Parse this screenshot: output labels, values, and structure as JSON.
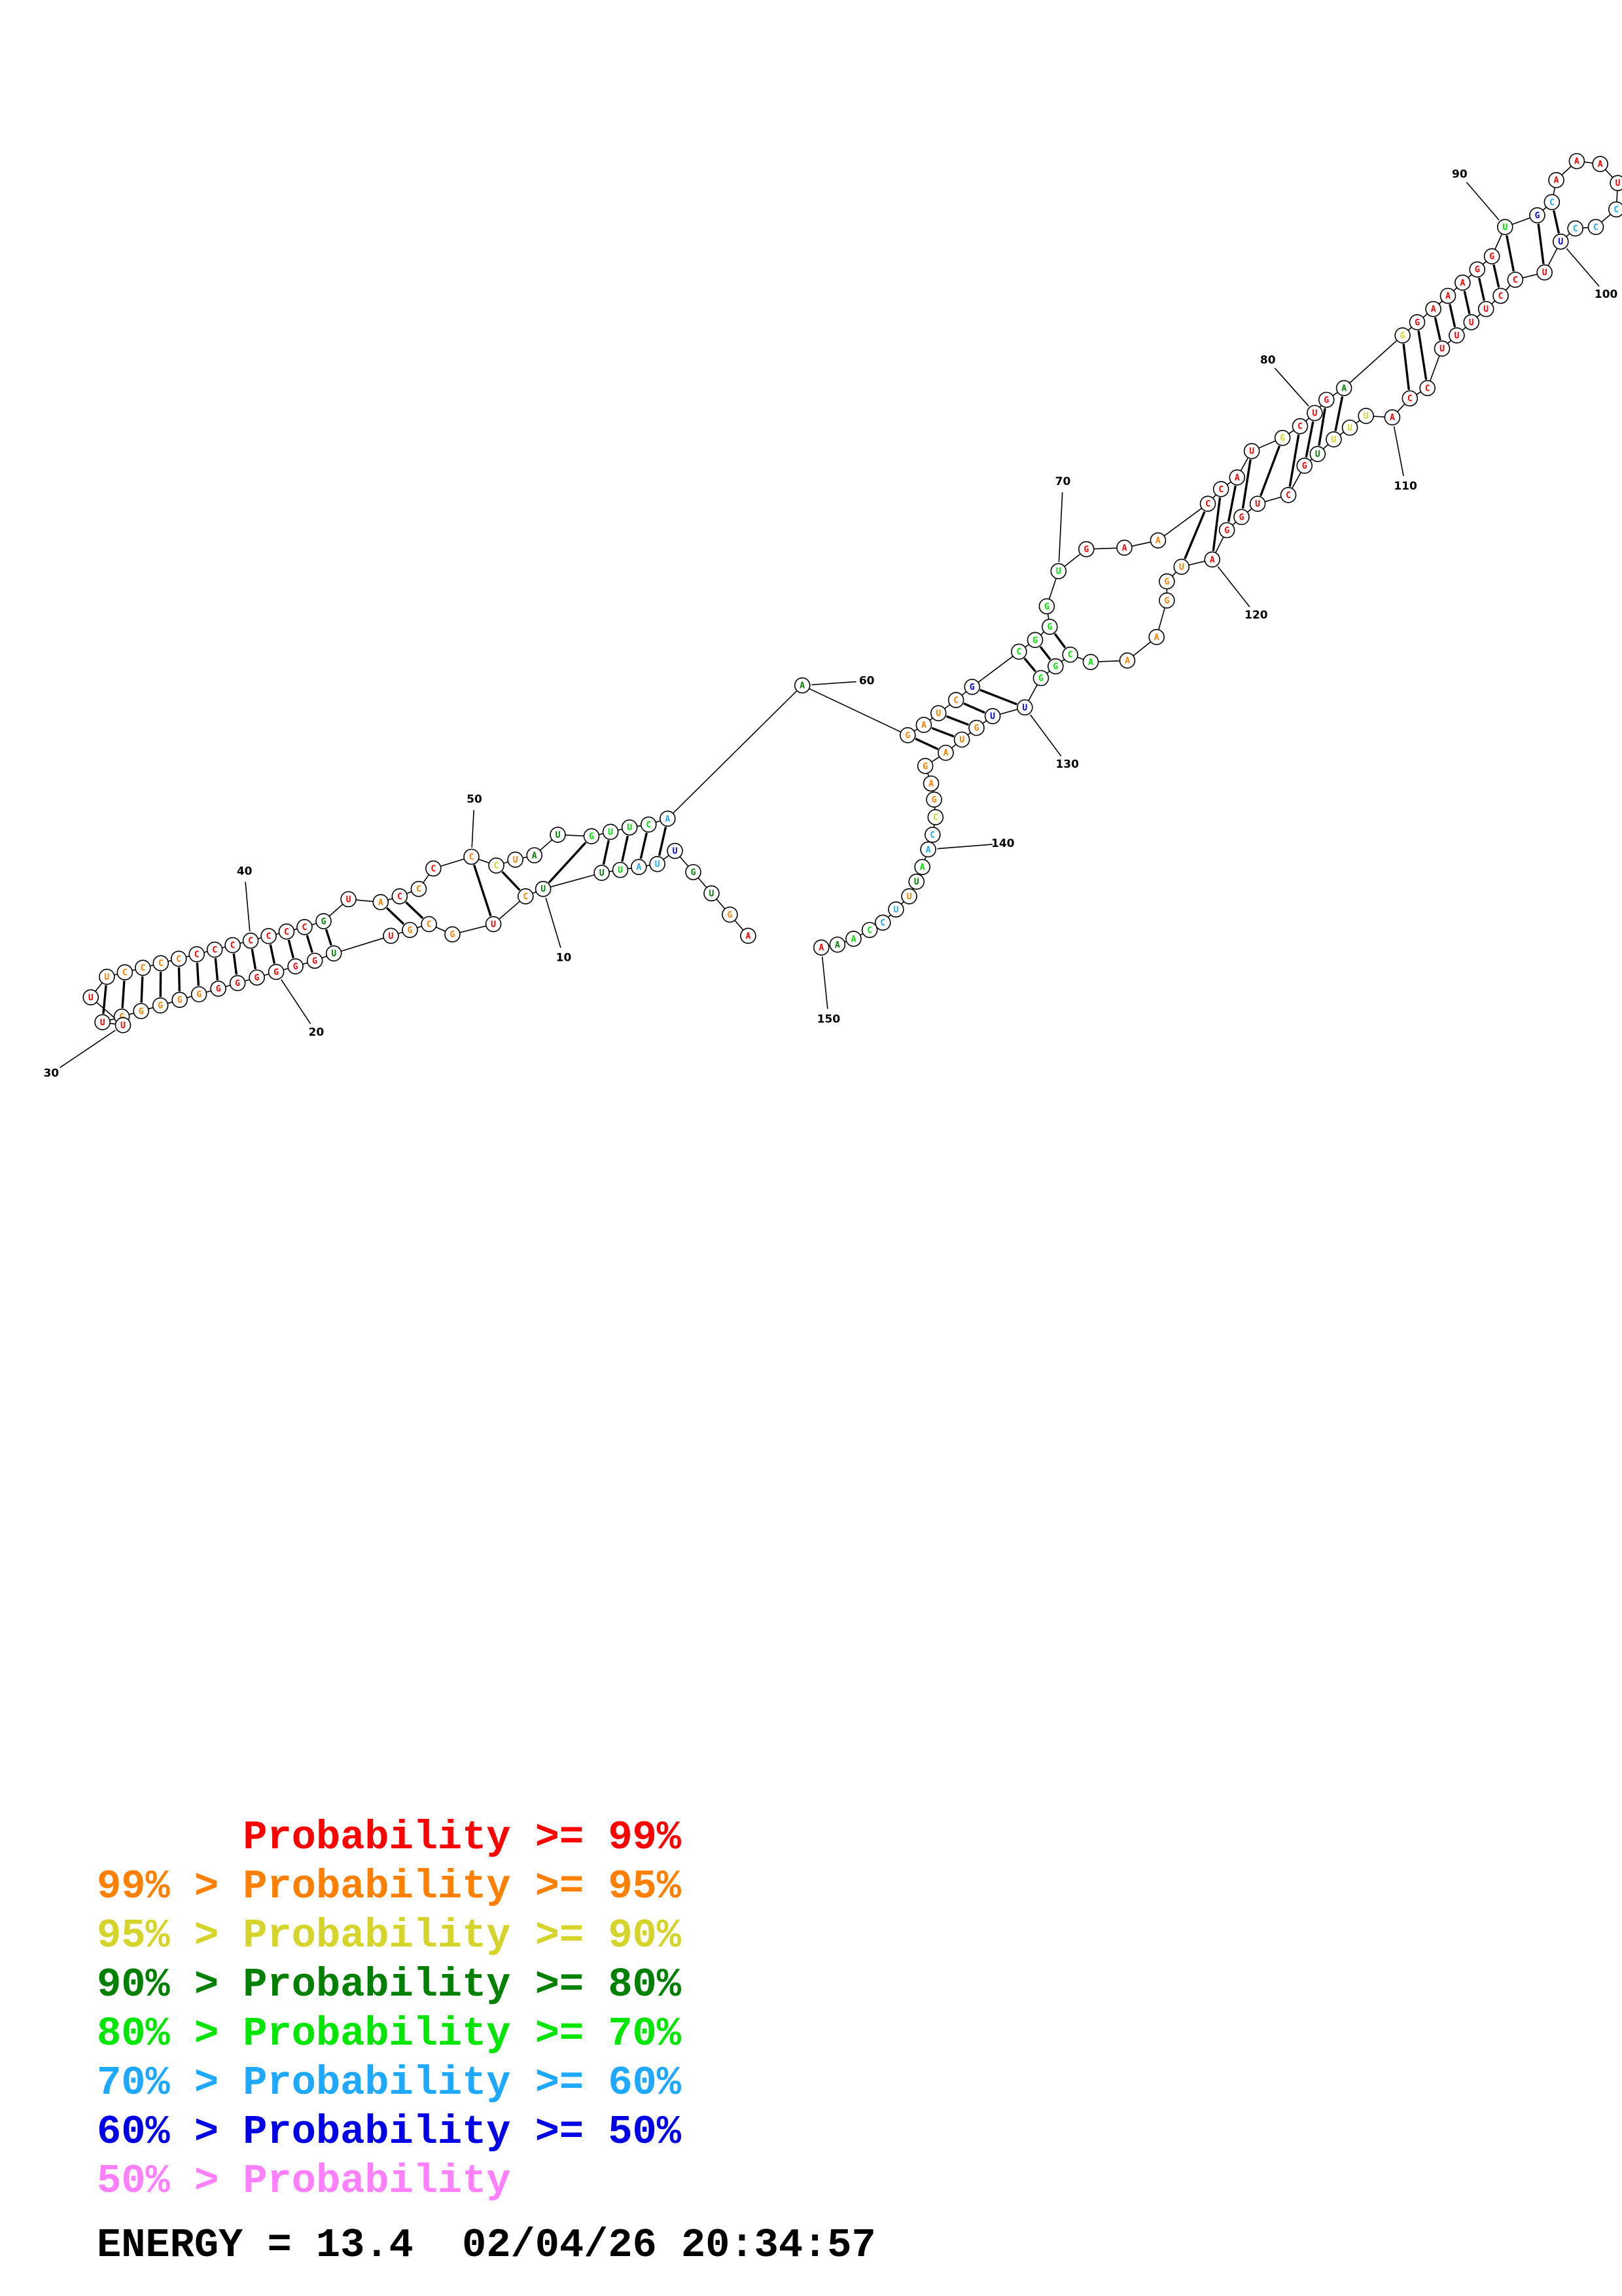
{
  "colors": {
    "p99": "#ff0000",
    "p95": "#ff8000",
    "p90": "#d4d42a",
    "p80": "#008000",
    "p70": "#00e600",
    "p60": "#1ea8ff",
    "p50": "#0000e6",
    "plow": "#ff80ff"
  },
  "legend": [
    {
      "prefix": "    ",
      "label": "Probability >= 99%",
      "color": "#ff0000"
    },
    {
      "prefix": "99% > ",
      "label": "Probability >= 95%",
      "color": "#ff8000"
    },
    {
      "prefix": "95% > ",
      "label": "Probability >= 90%",
      "color": "#d4d42a"
    },
    {
      "prefix": "90% > ",
      "label": "Probability >= 80%",
      "color": "#008000"
    },
    {
      "prefix": "80% > ",
      "label": "Probability >= 70%",
      "color": "#00e600"
    },
    {
      "prefix": "70% > ",
      "label": "Probability >= 60%",
      "color": "#1ea8ff"
    },
    {
      "prefix": "60% > ",
      "label": "Probability >= 50%",
      "color": "#0000e6"
    },
    {
      "prefix": "50% > ",
      "label": "Probability",
      "color": "#ff80ff"
    }
  ],
  "footer": {
    "energy_label": "ENERGY =",
    "energy_value": "13.4",
    "date": "02/04/26",
    "time": "20:34:57"
  },
  "position_labels": [
    "10",
    "20",
    "30",
    "40",
    "50",
    "60",
    "70",
    "80",
    "90",
    "100",
    "110",
    "120",
    "130",
    "140",
    "150"
  ],
  "sequence": [
    [
      "A",
      "p99"
    ],
    [
      "G",
      "p95"
    ],
    [
      "U",
      "p80"
    ],
    [
      "G",
      "p80"
    ],
    [
      "U",
      "p50"
    ],
    [
      "U",
      "p60"
    ],
    [
      "A",
      "p60"
    ],
    [
      "U",
      "p70"
    ],
    [
      "U",
      "p80"
    ],
    [
      "U",
      "p80"
    ],
    [
      "C",
      "p95"
    ],
    [
      "U",
      "p99"
    ],
    [
      "G",
      "p95"
    ],
    [
      "C",
      "p95"
    ],
    [
      "G",
      "p95"
    ],
    [
      "U",
      "p99"
    ],
    [
      "U",
      "p80"
    ],
    [
      "G",
      "p99"
    ],
    [
      "G",
      "p99"
    ],
    [
      "G",
      "p99"
    ],
    [
      "G",
      "p99"
    ],
    [
      "G",
      "p99"
    ],
    [
      "G",
      "p99"
    ],
    [
      "G",
      "p95"
    ],
    [
      "G",
      "p95"
    ],
    [
      "G",
      "p95"
    ],
    [
      "G",
      "p95"
    ],
    [
      "G",
      "p95"
    ],
    [
      "U",
      "p99"
    ],
    [
      "U",
      "p99"
    ],
    [
      "U",
      "p99"
    ],
    [
      "U",
      "p95"
    ],
    [
      "C",
      "p95"
    ],
    [
      "C",
      "p95"
    ],
    [
      "C",
      "p95"
    ],
    [
      "C",
      "p95"
    ],
    [
      "C",
      "p99"
    ],
    [
      "C",
      "p99"
    ],
    [
      "C",
      "p99"
    ],
    [
      "C",
      "p99"
    ],
    [
      "C",
      "p99"
    ],
    [
      "C",
      "p99"
    ],
    [
      "C",
      "p99"
    ],
    [
      "G",
      "p80"
    ],
    [
      "U",
      "p99"
    ],
    [
      "A",
      "p95"
    ],
    [
      "C",
      "p99"
    ],
    [
      "C",
      "p95"
    ],
    [
      "C",
      "p99"
    ],
    [
      "C",
      "p95"
    ],
    [
      "C",
      "p90"
    ],
    [
      "U",
      "p95"
    ],
    [
      "A",
      "p80"
    ],
    [
      "U",
      "p80"
    ],
    [
      "G",
      "p70"
    ],
    [
      "U",
      "p70"
    ],
    [
      "U",
      "p70"
    ],
    [
      "C",
      "p70"
    ],
    [
      "A",
      "p60"
    ],
    [
      "A",
      "p80"
    ],
    [
      "G",
      "p95"
    ],
    [
      "A",
      "p95"
    ],
    [
      "U",
      "p95"
    ],
    [
      "C",
      "p95"
    ],
    [
      "G",
      "p50"
    ],
    [
      "C",
      "p70"
    ],
    [
      "G",
      "p70"
    ],
    [
      "G",
      "p70"
    ],
    [
      "G",
      "p70"
    ],
    [
      "U",
      "p70"
    ],
    [
      "G",
      "p99"
    ],
    [
      "A",
      "p99"
    ],
    [
      "A",
      "p95"
    ],
    [
      "C",
      "p99"
    ],
    [
      "C",
      "p99"
    ],
    [
      "A",
      "p99"
    ],
    [
      "U",
      "p99"
    ],
    [
      "G",
      "p90"
    ],
    [
      "C",
      "p99"
    ],
    [
      "U",
      "p99"
    ],
    [
      "G",
      "p99"
    ],
    [
      "A",
      "p80"
    ],
    [
      "G",
      "p90"
    ],
    [
      "G",
      "p99"
    ],
    [
      "A",
      "p99"
    ],
    [
      "A",
      "p99"
    ],
    [
      "A",
      "p99"
    ],
    [
      "G",
      "p99"
    ],
    [
      "G",
      "p99"
    ],
    [
      "U",
      "p70"
    ],
    [
      "G",
      "p50"
    ],
    [
      "C",
      "p60"
    ],
    [
      "A",
      "p99"
    ],
    [
      "A",
      "p99"
    ],
    [
      "A",
      "p99"
    ],
    [
      "U",
      "p99"
    ],
    [
      "C",
      "p60"
    ],
    [
      "C",
      "p60"
    ],
    [
      "C",
      "p60"
    ],
    [
      "U",
      "p50"
    ],
    [
      "U",
      "p99"
    ],
    [
      "C",
      "p99"
    ],
    [
      "C",
      "p99"
    ],
    [
      "U",
      "p99"
    ],
    [
      "U",
      "p99"
    ],
    [
      "U",
      "p99"
    ],
    [
      "U",
      "p99"
    ],
    [
      "C",
      "p99"
    ],
    [
      "C",
      "p99"
    ],
    [
      "A",
      "p99"
    ],
    [
      "U",
      "p90"
    ],
    [
      "U",
      "p90"
    ],
    [
      "U",
      "p90"
    ],
    [
      "U",
      "p80"
    ],
    [
      "G",
      "p99"
    ],
    [
      "C",
      "p99"
    ],
    [
      "U",
      "p99"
    ],
    [
      "G",
      "p99"
    ],
    [
      "G",
      "p99"
    ],
    [
      "A",
      "p99"
    ],
    [
      "U",
      "p95"
    ],
    [
      "G",
      "p95"
    ],
    [
      "G",
      "p95"
    ],
    [
      "A",
      "p95"
    ],
    [
      "A",
      "p95"
    ],
    [
      "A",
      "p70"
    ],
    [
      "C",
      "p70"
    ],
    [
      "G",
      "p70"
    ],
    [
      "G",
      "p70"
    ],
    [
      "U",
      "p50"
    ],
    [
      "U",
      "p50"
    ],
    [
      "G",
      "p95"
    ],
    [
      "U",
      "p95"
    ],
    [
      "A",
      "p95"
    ],
    [
      "G",
      "p95"
    ],
    [
      "A",
      "p95"
    ],
    [
      "G",
      "p95"
    ],
    [
      "C",
      "p90"
    ],
    [
      "C",
      "p60"
    ],
    [
      "A",
      "p60"
    ],
    [
      "A",
      "p70"
    ],
    [
      "U",
      "p80"
    ],
    [
      "U",
      "p95"
    ],
    [
      "U",
      "p60"
    ],
    [
      "C",
      "p60"
    ],
    [
      "C",
      "p70"
    ],
    [
      "A",
      "p70"
    ],
    [
      "A",
      "p80"
    ],
    [
      "A",
      "p99"
    ]
  ]
}
